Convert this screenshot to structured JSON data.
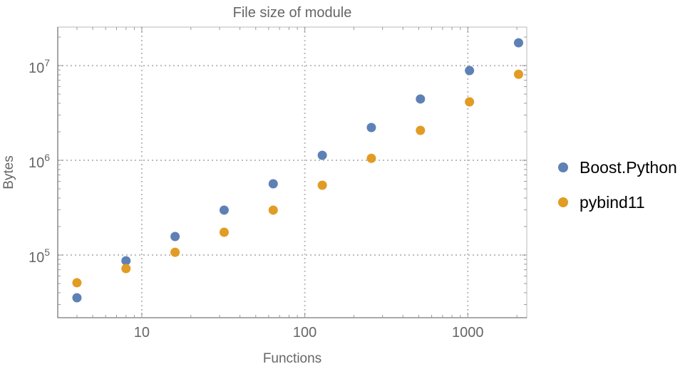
{
  "chart_data": {
    "type": "scatter",
    "title": "File size of module",
    "xlabel": "Functions",
    "ylabel": "Bytes",
    "x_scale": "log",
    "y_scale": "log",
    "xlim": [
      3.05,
      2300
    ],
    "ylim": [
      21800,
      25500000
    ],
    "grid": true,
    "legend_position": "right",
    "x_ticks": [
      {
        "value": 10,
        "label": "10"
      },
      {
        "value": 100,
        "label": "100"
      },
      {
        "value": 1000,
        "label": "1000"
      }
    ],
    "y_ticks": [
      {
        "value": 100000,
        "base": "10",
        "exp": "5"
      },
      {
        "value": 1000000,
        "base": "10",
        "exp": "6"
      },
      {
        "value": 10000000,
        "base": "10",
        "exp": "7"
      }
    ],
    "x": [
      4,
      8,
      16,
      32,
      64,
      128,
      256,
      512,
      1024,
      2048
    ],
    "series": [
      {
        "name": "Boost.Python",
        "color": "#5e81b5",
        "values": [
          35400,
          87000,
          157000,
          298000,
          565000,
          1130000,
          2220000,
          4440000,
          8860000,
          17400000
        ]
      },
      {
        "name": "pybind11",
        "color": "#e19c24",
        "values": [
          51000,
          72000,
          107000,
          174000,
          298000,
          546000,
          1050000,
          2070000,
          4140000,
          8100000
        ]
      }
    ]
  }
}
